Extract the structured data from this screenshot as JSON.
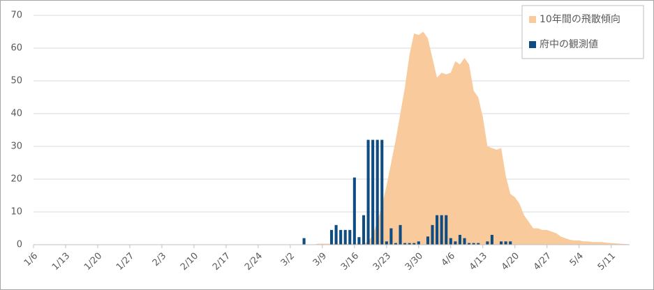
{
  "chart_data": {
    "type": "area_bar",
    "categories": [
      "1/6",
      null,
      null,
      null,
      null,
      null,
      null,
      "1/13",
      null,
      null,
      null,
      null,
      null,
      null,
      "1/20",
      null,
      null,
      null,
      null,
      null,
      null,
      "1/27",
      null,
      null,
      null,
      null,
      null,
      null,
      "2/3",
      null,
      null,
      null,
      null,
      null,
      null,
      "2/10",
      null,
      null,
      null,
      null,
      null,
      null,
      "2/17",
      null,
      null,
      null,
      null,
      null,
      null,
      "2/24",
      null,
      null,
      null,
      null,
      null,
      null,
      "3/2",
      null,
      null,
      null,
      null,
      null,
      null,
      "3/9",
      null,
      null,
      null,
      null,
      null,
      null,
      "3/16",
      null,
      null,
      null,
      null,
      null,
      null,
      "3/23",
      null,
      null,
      null,
      null,
      null,
      null,
      "3/30",
      null,
      null,
      null,
      null,
      null,
      null,
      "4/6",
      null,
      null,
      null,
      null,
      null,
      null,
      "4/13",
      null,
      null,
      null,
      null,
      null,
      null,
      "4/20",
      null,
      null,
      null,
      null,
      null,
      null,
      "4/27",
      null,
      null,
      null,
      null,
      null,
      null,
      "5/4",
      null,
      null,
      null,
      null,
      null,
      null,
      "5/11",
      null,
      null,
      null,
      null
    ],
    "series": [
      {
        "name": "10年間の飛散傾向",
        "kind": "area",
        "color": "#f9cb9c",
        "values": [
          0,
          0,
          0,
          0,
          0,
          0,
          0,
          0,
          0,
          0,
          0,
          0,
          0,
          0,
          0,
          0,
          0,
          0,
          0,
          0,
          0,
          0,
          0,
          0,
          0,
          0,
          0,
          0,
          0,
          0,
          0,
          0,
          0,
          0,
          0,
          0,
          0,
          0,
          0,
          0,
          0,
          0,
          0,
          0,
          0,
          0,
          0,
          0,
          0,
          0,
          0,
          0,
          0,
          0,
          0,
          0,
          0,
          0,
          0,
          0,
          0,
          0,
          0.3,
          0.3,
          0.3,
          0.3,
          0.3,
          0.3,
          0.3,
          0.3,
          0.3,
          0.3,
          0.3,
          1,
          3,
          7,
          12,
          18,
          25,
          32,
          40,
          48,
          58,
          64.5,
          64,
          65,
          63,
          57,
          51,
          52.5,
          52,
          52.5,
          56,
          55,
          57,
          55,
          47,
          45,
          39,
          30,
          29.5,
          29,
          29.5,
          21,
          15.5,
          14.5,
          12.5,
          9,
          7,
          5,
          5,
          4.5,
          4.5,
          4,
          3.5,
          2.5,
          2,
          1.5,
          1.3,
          1.3,
          1,
          1,
          0.8,
          0.8,
          0.8,
          0.6,
          0.5,
          0.4,
          0.3,
          0.2,
          0.1
        ]
      },
      {
        "name": "府中の観測値",
        "kind": "bar",
        "color": "#0f4c81",
        "values": [
          0,
          0,
          0,
          0,
          0,
          0,
          0,
          0,
          0,
          0,
          0,
          0,
          0,
          0,
          0,
          0,
          0,
          0,
          0,
          0,
          0,
          0,
          0,
          0,
          0,
          0,
          0,
          0,
          0,
          0,
          0,
          0,
          0,
          0,
          0,
          0,
          0,
          0,
          0,
          0,
          0,
          0,
          0,
          0,
          0,
          0,
          0,
          0,
          0,
          0,
          0,
          0,
          0,
          0,
          0,
          0,
          0,
          0,
          0,
          2,
          0,
          0,
          0,
          0,
          0,
          4.5,
          6,
          4.5,
          4.5,
          4.5,
          20.5,
          2.3,
          9,
          32,
          32,
          32,
          32,
          1,
          5,
          0.5,
          6,
          0.5,
          0.5,
          0.5,
          1,
          0,
          2.5,
          6,
          9,
          9,
          9,
          2,
          1,
          3,
          2,
          0.5,
          0.5,
          0.5,
          0,
          1,
          3,
          0,
          1,
          1,
          1,
          null,
          null,
          null,
          null,
          null,
          null,
          null,
          null,
          null,
          null,
          null,
          null,
          null,
          null,
          null,
          null,
          null,
          null,
          null,
          null,
          null,
          null,
          null,
          null,
          null,
          null
        ]
      }
    ],
    "ylim": [
      0,
      70
    ],
    "yticks": [
      0,
      10,
      20,
      30,
      40,
      50,
      60,
      70
    ],
    "grid": true,
    "legend": "top-right"
  }
}
